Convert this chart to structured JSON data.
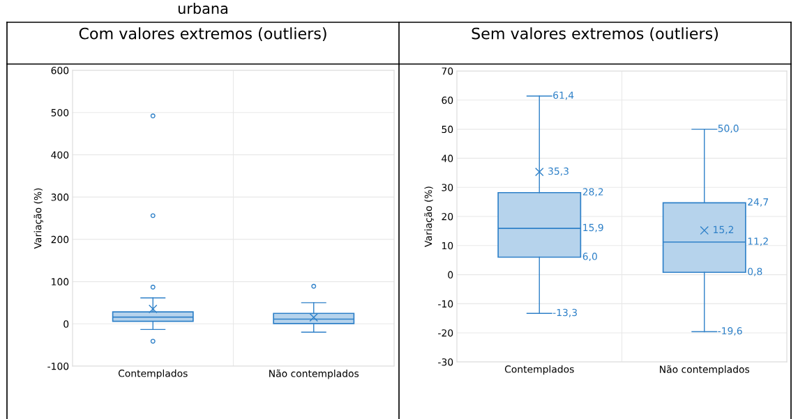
{
  "chart_data": [
    {
      "type": "box",
      "title": "Com valores extremos (outliers)",
      "ylabel": "Variação (%)",
      "categories": [
        "Contemplados",
        "Não contemplados"
      ],
      "ylim": [
        -100,
        600
      ],
      "yticks": [
        -100,
        0,
        100,
        200,
        300,
        400,
        500,
        600
      ],
      "grid": true,
      "annotations": [
        "urbana"
      ],
      "series": [
        {
          "color": "#2e80c8",
          "boxes": [
            {
              "low": -13.3,
              "q1": 6.0,
              "median": 15.9,
              "q3": 28.2,
              "high": 61.4,
              "mean": 35.3,
              "outliers": [
                492,
                256,
                87,
                -41
              ]
            },
            {
              "low": -19.6,
              "q1": 0.8,
              "median": 11.2,
              "q3": 24.7,
              "high": 50.0,
              "mean": 15.2,
              "outliers": [
                89
              ]
            }
          ]
        }
      ]
    },
    {
      "type": "box",
      "title": "Sem valores extremos (outliers)",
      "ylabel": "Variação (%)",
      "categories": [
        "Contemplados",
        "Não contemplados"
      ],
      "ylim": [
        -30,
        70
      ],
      "yticks": [
        -30,
        -20,
        -10,
        0,
        10,
        20,
        30,
        40,
        50,
        60,
        70
      ],
      "grid": true,
      "series": [
        {
          "color": "#2e80c8",
          "boxes": [
            {
              "low": -13.3,
              "q1": 6.0,
              "median": 15.9,
              "q3": 28.2,
              "high": 61.4,
              "mean": 35.3
            },
            {
              "low": -19.6,
              "q1": 0.8,
              "median": 11.2,
              "q3": 24.7,
              "high": 50.0,
              "mean": 15.2
            }
          ],
          "value_labels": [
            [
              "-13,3",
              "6,0",
              "15,9",
              "28,2",
              "61,4",
              "35,3"
            ],
            [
              "-19,6",
              "0,8",
              "11,2",
              "24,7",
              "50,0",
              "15,2"
            ]
          ]
        }
      ]
    }
  ]
}
